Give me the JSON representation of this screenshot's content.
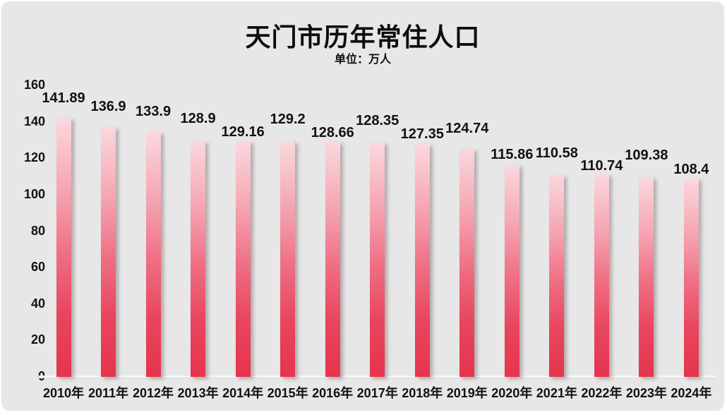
{
  "header": {
    "title": "天门市历年常住人口",
    "subtitle": "单位：万人"
  },
  "colors": {
    "background": "#e8e7e7",
    "text": "#111111",
    "baseline": "#f6f5f5",
    "bar_top": "#fbd8de",
    "bar_bottom": "#e6344e"
  },
  "chart_data": {
    "type": "bar",
    "title": "天门市历年常住人口",
    "subtitle": "单位：万人",
    "unit": "万人",
    "categories": [
      "2010年",
      "2011年",
      "2012年",
      "2013年",
      "2014年",
      "2015年",
      "2016年",
      "2017年",
      "2018年",
      "2019年",
      "2020年",
      "2021年",
      "2022年",
      "2023年",
      "2024年"
    ],
    "values": [
      141.89,
      136.9,
      133.9,
      128.9,
      129.16,
      129.2,
      128.66,
      128.35,
      127.35,
      124.74,
      115.86,
      110.58,
      110.74,
      109.38,
      108.4
    ],
    "ylim": [
      0,
      160
    ],
    "yticks": [
      0,
      20,
      40,
      60,
      80,
      100,
      120,
      140,
      160
    ],
    "grid": false,
    "legend": false,
    "data_labels": true,
    "label_gaps": [
      17,
      18,
      18,
      21,
      2,
      20,
      2,
      20,
      3,
      18,
      4,
      20,
      1,
      20,
      2
    ],
    "bar_gradient_stops": [
      [
        "0%",
        "#fbd8de"
      ],
      [
        "28%",
        "#f5a5b2"
      ],
      [
        "52%",
        "#ef7085"
      ],
      [
        "76%",
        "#e8455e"
      ],
      [
        "100%",
        "#e6344e"
      ]
    ]
  }
}
